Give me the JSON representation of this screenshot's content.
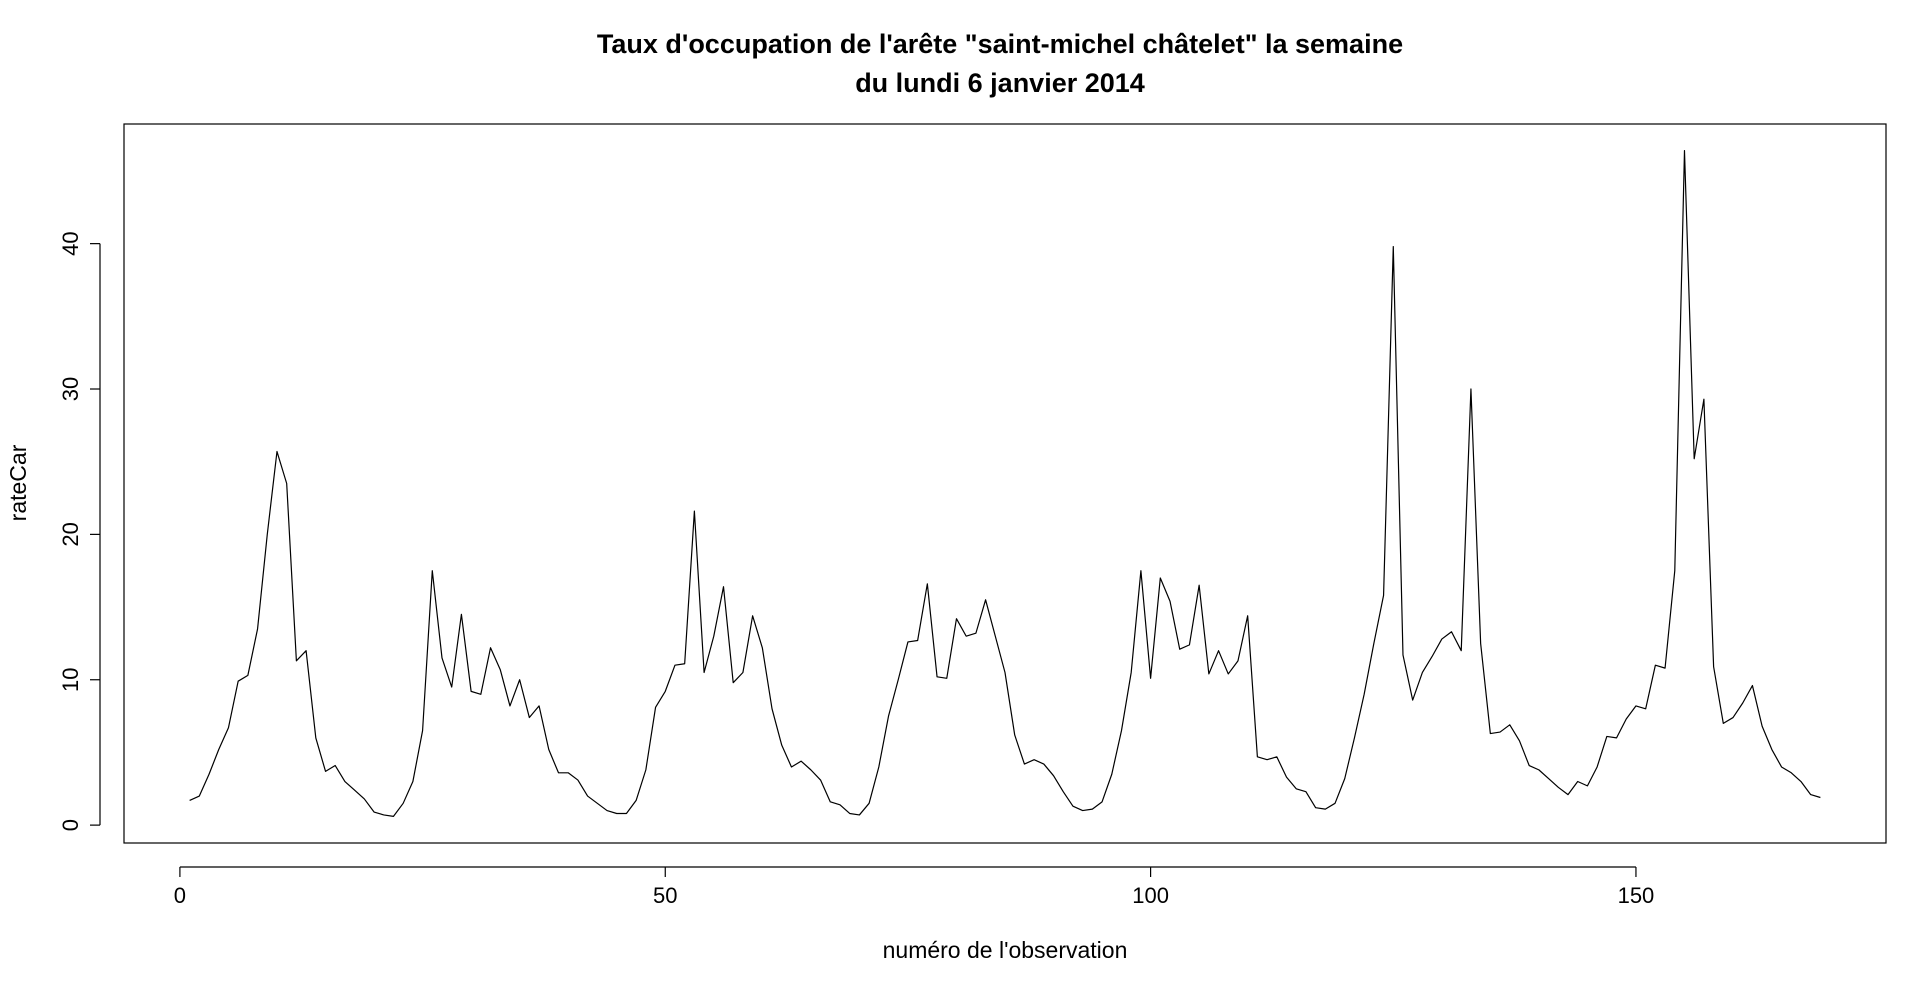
{
  "chart_data": {
    "type": "line",
    "title": "Taux d'occupation de l'arête \"saint-michel châtelet\" la semaine",
    "subtitle": "du lundi 6 janvier 2014",
    "x_label": "numéro de l'observation",
    "y_label": "rateCar",
    "x": [
      1,
      2,
      3,
      4,
      5,
      6,
      7,
      8,
      9,
      10,
      11,
      12,
      13,
      14,
      15,
      16,
      17,
      18,
      19,
      20,
      21,
      22,
      23,
      24,
      25,
      26,
      27,
      28,
      29,
      30,
      31,
      32,
      33,
      34,
      35,
      36,
      37,
      38,
      39,
      40,
      41,
      42,
      43,
      44,
      45,
      46,
      47,
      48,
      49,
      50,
      51,
      52,
      53,
      54,
      55,
      56,
      57,
      58,
      59,
      60,
      61,
      62,
      63,
      64,
      65,
      66,
      67,
      68,
      69,
      70,
      71,
      72,
      73,
      74,
      75,
      76,
      77,
      78,
      79,
      80,
      81,
      82,
      83,
      84,
      85,
      86,
      87,
      88,
      89,
      90,
      91,
      92,
      93,
      94,
      95,
      96,
      97,
      98,
      99,
      100,
      101,
      102,
      103,
      104,
      105,
      106,
      107,
      108,
      109,
      110,
      111,
      112,
      113,
      114,
      115,
      116,
      117,
      118,
      119,
      120,
      121,
      122,
      123,
      124,
      125,
      126,
      127,
      128,
      129,
      130,
      131,
      132,
      133,
      134,
      135,
      136,
      137,
      138,
      139,
      140,
      141,
      142,
      143,
      144,
      145,
      146,
      147,
      148,
      149,
      150,
      151,
      152,
      153,
      154,
      155,
      156,
      157,
      158,
      159,
      160,
      161,
      162,
      163,
      164,
      165,
      166,
      167,
      168,
      169
    ],
    "series": [
      {
        "color": "#000000",
        "values": [
          1.7,
          2.0,
          3.5,
          5.2,
          6.7,
          9.9,
          10.3,
          13.5,
          20,
          25.7,
          23.5,
          11.3,
          12,
          6,
          3.7,
          4.1,
          3,
          2.4,
          1.8,
          0.9,
          0.7,
          0.6,
          1.5,
          3,
          6.5,
          17.5,
          11.5,
          9.5,
          14.5,
          9.2,
          9,
          12.2,
          10.7,
          8.2,
          10,
          7.4,
          8.2,
          5.2,
          3.6,
          3.6,
          3.1,
          2,
          1.5,
          1,
          0.8,
          0.8,
          1.7,
          3.8,
          8.1,
          9.2,
          11,
          11.1,
          21.6,
          10.5,
          13,
          16.4,
          9.8,
          10.5,
          14.4,
          12.2,
          8,
          5.5,
          4,
          4.4,
          3.8,
          3.1,
          1.6,
          1.4,
          0.8,
          0.7,
          1.5,
          4,
          7.5,
          10,
          12.6,
          12.7,
          16.6,
          10.2,
          10.1,
          14.2,
          13,
          13.2,
          15.5,
          13,
          10.5,
          6.2,
          4.2,
          4.5,
          4.2,
          3.4,
          2.3,
          1.3,
          1,
          1.1,
          1.6,
          3.5,
          6.5,
          10.5,
          17.5,
          10.1,
          17,
          15.4,
          12.1,
          12.4,
          16.5,
          10.4,
          12,
          10.4,
          11.3,
          14.4,
          4.7,
          4.5,
          4.7,
          3.3,
          2.5,
          2.3,
          1.2,
          1.1,
          1.5,
          3.2,
          6,
          9,
          12.5,
          15.8,
          39.8,
          11.7,
          8.6,
          10.5,
          11.6,
          12.8,
          13.3,
          12,
          30,
          12.5,
          6.3,
          6.4,
          6.9,
          5.8,
          4.1,
          3.8,
          3.2,
          2.6,
          2.1,
          3,
          2.7,
          4,
          6.1,
          6,
          7.3,
          8.2,
          8,
          11,
          10.8,
          17.5,
          46.4,
          25.2,
          29.3,
          10.9,
          7,
          7.4,
          8.4,
          9.6,
          6.8,
          5.2,
          4,
          3.6,
          3,
          2.1,
          1.9
        ]
      }
    ],
    "xlim": [
      -5.76,
      175.76
    ],
    "xticks": [
      0,
      50,
      100,
      150
    ],
    "ylim": [
      -1.23,
      48.23
    ],
    "yticks": [
      0,
      10,
      20,
      30,
      40
    ]
  }
}
